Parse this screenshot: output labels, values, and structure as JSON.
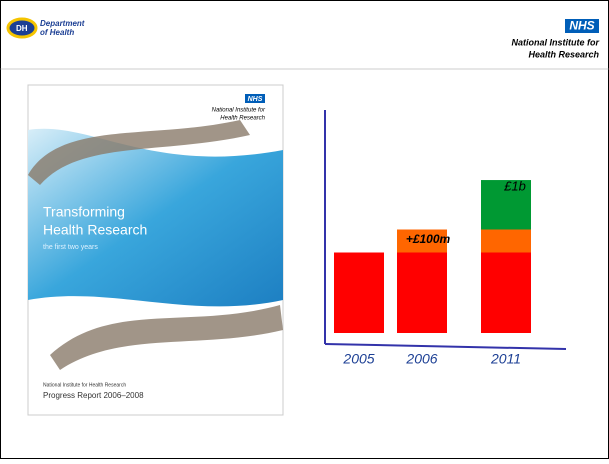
{
  "header": {
    "dh_logo": [
      "Department",
      "of Health"
    ],
    "nhs_logo": "NHS",
    "institute": [
      "National Institute for",
      "Health Research"
    ]
  },
  "cover": {
    "nhs": "NHS",
    "institute": [
      "National Institute for",
      "Health Research"
    ],
    "title": [
      "Transforming",
      "Health Research"
    ],
    "subtitle": "the first two years",
    "footer": "National Institute for Health Research",
    "report": "Progress Report 2006–2008"
  },
  "chart_data": {
    "type": "bar",
    "stacked": true,
    "categories": [
      "2005",
      "2006",
      "2011"
    ],
    "series": [
      {
        "color": "#ff0000",
        "values": [
          350,
          350,
          350
        ]
      },
      {
        "color": "#ff6600",
        "values": [
          null,
          100,
          100
        ]
      },
      {
        "color": "#009933",
        "values": [
          null,
          null,
          215
        ]
      }
    ],
    "ylim": [
      0,
      1000
    ],
    "annotations": [
      "+£100m",
      "£1b"
    ]
  }
}
